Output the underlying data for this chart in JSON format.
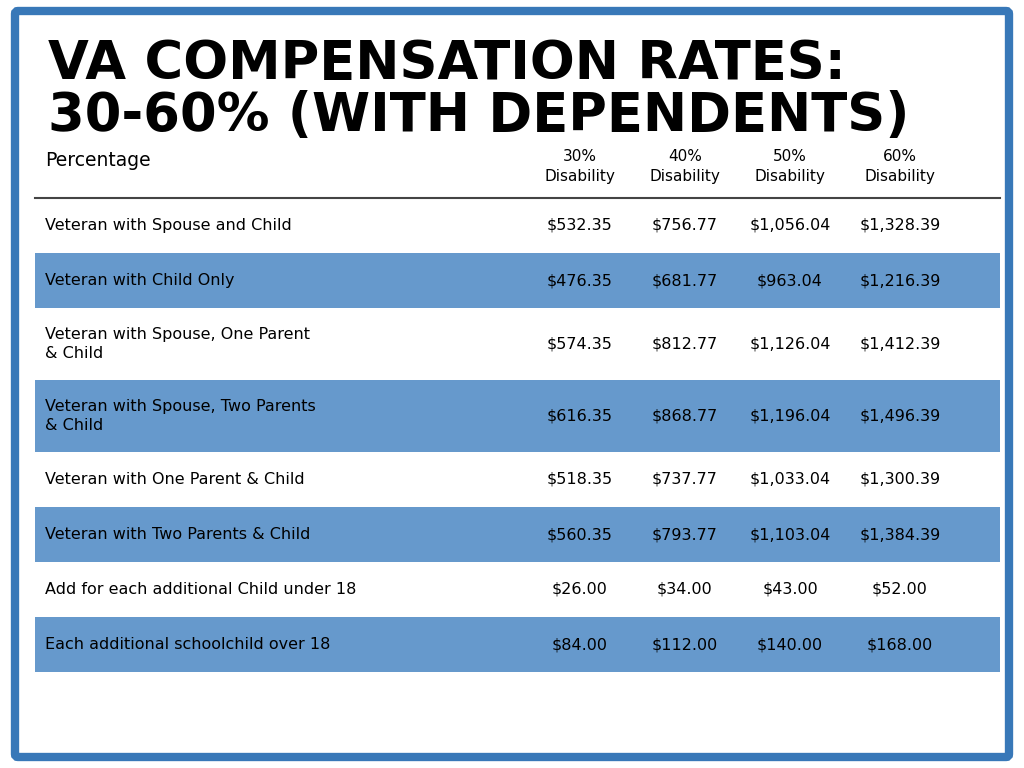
{
  "title_line1": "VA COMPENSATION RATES:",
  "title_line2": "30-60% (WITH DEPENDENTS)",
  "rows": [
    {
      "label": "Veteran with Spouse and Child",
      "values": [
        "$532.35",
        "$756.77",
        "$1,056.04",
        "$1,328.39"
      ],
      "shaded": false,
      "multiline": false
    },
    {
      "label": "Veteran with Child Only",
      "values": [
        "$476.35",
        "$681.77",
        "$963.04",
        "$1,216.39"
      ],
      "shaded": true,
      "multiline": false
    },
    {
      "label": "Veteran with Spouse, One Parent\n& Child",
      "values": [
        "$574.35",
        "$812.77",
        "$1,126.04",
        "$1,412.39"
      ],
      "shaded": false,
      "multiline": true
    },
    {
      "label": "Veteran with Spouse, Two Parents\n& Child",
      "values": [
        "$616.35",
        "$868.77",
        "$1,196.04",
        "$1,496.39"
      ],
      "shaded": true,
      "multiline": true
    },
    {
      "label": "Veteran with One Parent & Child",
      "values": [
        "$518.35",
        "$737.77",
        "$1,033.04",
        "$1,300.39"
      ],
      "shaded": false,
      "multiline": false
    },
    {
      "label": "Veteran with Two Parents & Child",
      "values": [
        "$560.35",
        "$793.77",
        "$1,103.04",
        "$1,384.39"
      ],
      "shaded": true,
      "multiline": false
    },
    {
      "label": "Add for each additional Child under 18",
      "values": [
        "$26.00",
        "$34.00",
        "$43.00",
        "$52.00"
      ],
      "shaded": false,
      "multiline": false
    },
    {
      "label": "Each additional schoolchild over 18",
      "values": [
        "$84.00",
        "$112.00",
        "$140.00",
        "$168.00"
      ],
      "shaded": true,
      "multiline": false
    }
  ],
  "bg_color": "#ffffff",
  "border_color": "#3878b8",
  "shade_color": "#6699cc",
  "text_color": "#000000",
  "title_color": "#000000",
  "col_headers": [
    "30%\nDisability",
    "40%\nDisability",
    "50%\nDisability",
    "60%\nDisability"
  ]
}
